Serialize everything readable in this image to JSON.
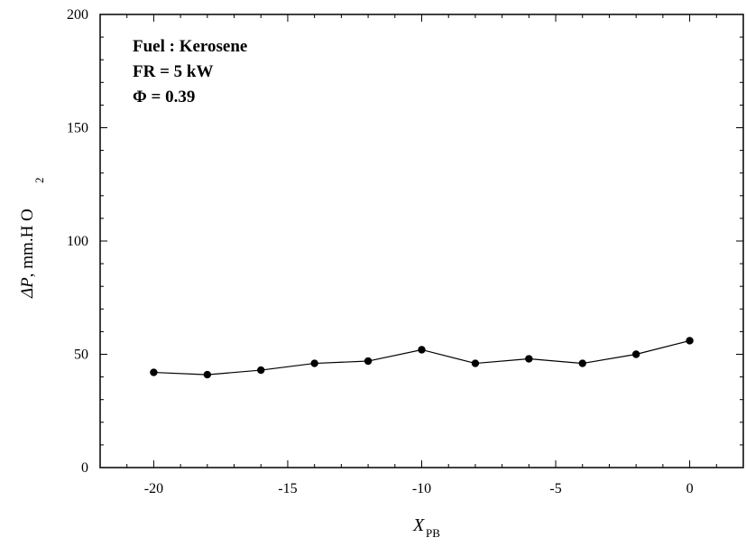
{
  "chart_data": {
    "type": "line",
    "x": [
      -20,
      -18,
      -16,
      -14,
      -12,
      -10,
      -8,
      -6,
      -4,
      -2,
      0
    ],
    "series": [
      {
        "values": [
          42,
          41,
          43,
          46,
          47,
          52,
          46,
          48,
          46,
          50,
          56
        ]
      }
    ],
    "xlim": [
      -22,
      2
    ],
    "ylim": [
      0,
      200
    ],
    "xticks": [
      -20,
      -15,
      -10,
      -5,
      0
    ],
    "yticks": [
      0,
      50,
      100,
      150,
      200
    ],
    "xlabel": {
      "main": "X",
      "sub": "PB"
    },
    "ylabel": {
      "main": "ΔP",
      "unit": ", mm.H O",
      "sub": "2"
    },
    "annotations": [
      "Fuel : Kerosene",
      "FR = 5 kW",
      "Φ = 0.39"
    ],
    "grid": false,
    "marker": "filled-circle",
    "line_color": "#000000"
  }
}
